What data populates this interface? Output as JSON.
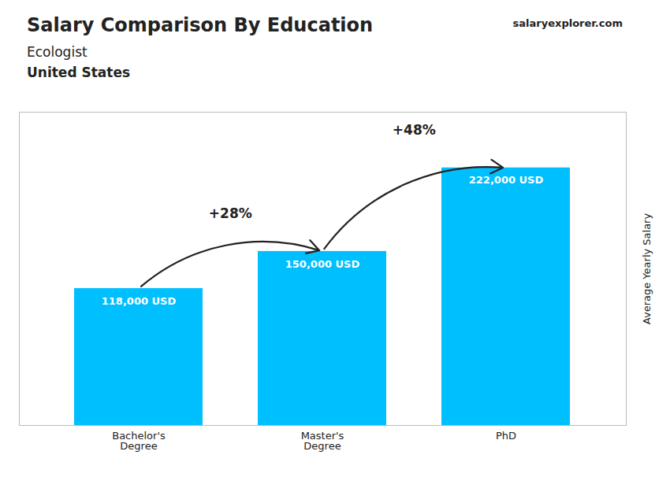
{
  "chart_data": {
    "type": "bar",
    "title": "Salary Comparison By Education",
    "subtitle": [
      "Ecologist",
      "United States"
    ],
    "ylabel": "Average Yearly Salary",
    "categories": [
      "Bachelor's\nDegree",
      "Master's\nDegree",
      "PhD"
    ],
    "values": [
      118000,
      150000,
      222000
    ],
    "value_labels": [
      "118,000 USD",
      "150,000 USD",
      "222,000 USD"
    ],
    "data_labels": true,
    "color": "#00BFFF",
    "ylim": [
      0,
      270000
    ],
    "tick_labels": "x",
    "grid": false,
    "annotations": [
      {
        "text": "+28%",
        "from": "Bachelor's\nDegree",
        "to": "Master's\nDegree"
      },
      {
        "text": "+48%",
        "from": "Master's\nDegree",
        "to": "PhD"
      },
      {
        "text": "salaryexplorer.com"
      }
    ]
  }
}
